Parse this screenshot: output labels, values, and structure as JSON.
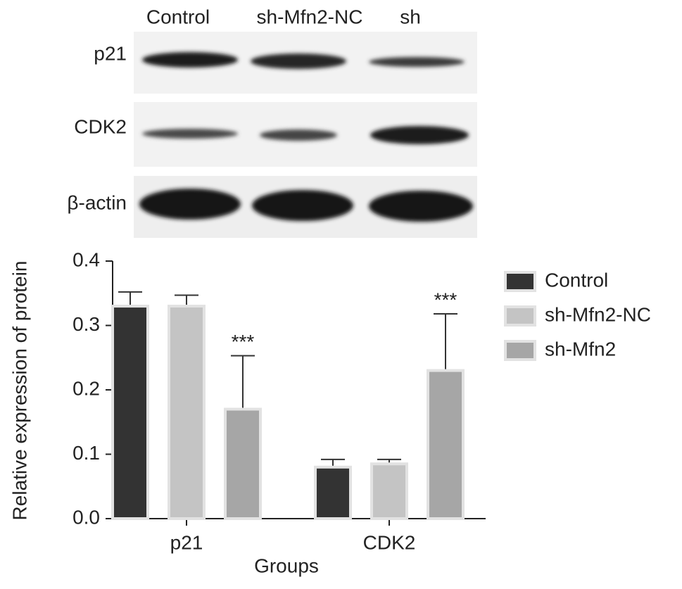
{
  "blot": {
    "columns": [
      "Control",
      "sh-Mfn2-NC",
      "sh"
    ],
    "rows": [
      "p21",
      "CDK2",
      "β-actin"
    ]
  },
  "chart_data": {
    "type": "bar",
    "ylabel": "Relative expression of protein",
    "xlabel": "Groups",
    "categories": [
      "p21",
      "CDK2"
    ],
    "series": [
      {
        "name": "Control",
        "color": "#333333",
        "values": [
          0.33,
          0.08
        ],
        "errors": [
          0.022,
          0.012
        ]
      },
      {
        "name": "sh-Mfn2-NC",
        "color": "#c4c4c4",
        "values": [
          0.33,
          0.085
        ],
        "errors": [
          0.017,
          0.007
        ]
      },
      {
        "name": "sh-Mfn2",
        "color": "#a6a6a6",
        "values": [
          0.17,
          0.23
        ],
        "errors": [
          0.083,
          0.088
        ]
      }
    ],
    "annotations": [
      "***",
      "***"
    ],
    "ylim": [
      0,
      0.4
    ],
    "yticks": [
      {
        "value": 0,
        "label": "0.0"
      },
      0.1,
      0.2,
      0.3,
      0.4
    ],
    "legend": "right"
  }
}
